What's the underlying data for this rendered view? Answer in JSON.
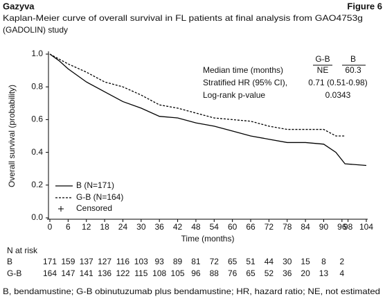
{
  "header": {
    "left": "Gazyva",
    "right": "Figure 6"
  },
  "chart_data": {
    "type": "line",
    "step": false,
    "title": [
      "Kaplan-Meier curve of overall survival in FL patients at final analysis from GAO4753g",
      "(GADOLIN) study"
    ],
    "x_label": "Time (months)",
    "y_label": "Overall survival (probability)",
    "x": [
      0,
      3,
      6,
      12,
      18,
      24,
      30,
      36,
      42,
      48,
      54,
      60,
      66,
      72,
      78,
      84,
      90,
      94,
      97,
      104
    ],
    "series": [
      {
        "name": "B (N=171)",
        "color": "#000000",
        "line_style": "solid",
        "values": [
          1.0,
          0.96,
          0.91,
          0.83,
          0.77,
          0.71,
          0.67,
          0.62,
          0.61,
          0.58,
          0.56,
          0.53,
          0.5,
          0.48,
          0.46,
          0.46,
          0.45,
          0.4,
          0.33,
          0.32
        ]
      },
      {
        "name": "G-B (N=164)",
        "color": "#000000",
        "line_style": "dashed",
        "values": [
          1.0,
          0.97,
          0.94,
          0.89,
          0.83,
          0.8,
          0.75,
          0.69,
          0.67,
          0.64,
          0.61,
          0.6,
          0.59,
          0.56,
          0.54,
          0.54,
          0.54,
          0.5,
          0.5,
          null
        ]
      }
    ],
    "censored_label": "Censored",
    "xlim": [
      0,
      104
    ],
    "xticks": [
      0,
      6,
      12,
      18,
      24,
      30,
      36,
      42,
      48,
      54,
      60,
      66,
      72,
      78,
      84,
      90,
      96,
      98,
      104
    ],
    "ylim": [
      0,
      1
    ],
    "yticks": [
      {
        "value": 0,
        "label": "0.0"
      },
      0.2,
      0.4,
      0.6,
      0.8,
      {
        "value": 1,
        "label": "1.0"
      }
    ],
    "legend": "lower left",
    "stats_table": {
      "columns": [
        "G-B",
        "B"
      ],
      "rows": [
        {
          "label": "Median time (months)",
          "values": [
            "NE",
            "60.3"
          ]
        },
        {
          "label": "Stratified HR (95% CI),",
          "value": "0.71 (0.51-0.98)"
        },
        {
          "label": "Log-rank p-value",
          "value": "0.0343"
        }
      ]
    },
    "risk_table": {
      "title": "N at risk",
      "rows": [
        {
          "name": "B",
          "values": [
            171,
            159,
            137,
            127,
            116,
            103,
            93,
            89,
            81,
            72,
            65,
            51,
            44,
            30,
            15,
            8,
            2
          ]
        },
        {
          "name": "G-B",
          "values": [
            164,
            147,
            141,
            136,
            122,
            115,
            108,
            105,
            96,
            88,
            76,
            65,
            52,
            36,
            20,
            13,
            4
          ]
        }
      ]
    }
  },
  "footnote": "B, bendamustine; G-B obinutuzumab plus bendamustine; HR, hazard ratio; NE, not estimated"
}
